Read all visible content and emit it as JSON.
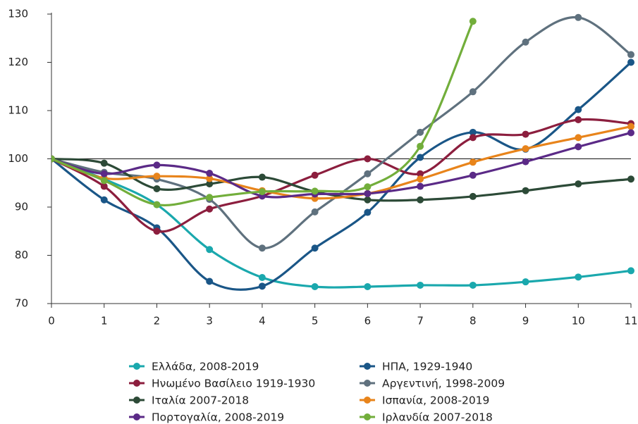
{
  "chart_data": {
    "type": "line",
    "x": [
      0,
      1,
      2,
      3,
      4,
      5,
      6,
      7,
      8,
      9,
      10,
      11
    ],
    "xlim": [
      0,
      11
    ],
    "xticks": [
      0,
      1,
      2,
      3,
      4,
      5,
      6,
      7,
      8,
      9,
      10,
      11
    ],
    "ylim": [
      70,
      130
    ],
    "yticks": [
      70,
      80,
      90,
      100,
      110,
      120,
      130
    ],
    "reference_line": 100,
    "smooth": true,
    "markers": true,
    "series": [
      {
        "name": "Ελλάδα, 2008-2019",
        "color": "#1aa8ad",
        "values": [
          100,
          95.8,
          90.5,
          81.2,
          75.4,
          73.5,
          73.5,
          73.8,
          73.8,
          74.5,
          75.5,
          76.8
        ]
      },
      {
        "name": "ΗΠΑ, 1929-1940",
        "color": "#1a5687",
        "values": [
          100,
          91.5,
          85.7,
          74.6,
          73.6,
          81.5,
          88.9,
          100.3,
          105.5,
          102,
          110.2,
          120
        ]
      },
      {
        "name": "Ηνωμένο Βασίλειο 1919-1930",
        "color": "#8c1e3e",
        "values": [
          100,
          94.3,
          85,
          89.6,
          92.3,
          96.6,
          100,
          96.9,
          104.4,
          105.1,
          108.1,
          107.3
        ]
      },
      {
        "name": "Αργεντινή, 1998-2009",
        "color": "#5f717e",
        "values": [
          100,
          97.2,
          95.8,
          91.6,
          81.5,
          89,
          96.9,
          105.5,
          113.9,
          124.2,
          129.3,
          121.6
        ]
      },
      {
        "name": "Ιταλία 2007-2018",
        "color": "#2c4a37",
        "values": [
          100,
          99.1,
          93.8,
          94.8,
          96.2,
          93.2,
          91.5,
          91.5,
          92.2,
          93.4,
          94.8,
          95.8
        ]
      },
      {
        "name": "Ισπανία, 2008-2019",
        "color": "#e8841b",
        "values": [
          100,
          96,
          96.4,
          95.9,
          93.4,
          91.8,
          92.8,
          95.8,
          99.3,
          102.1,
          104.4,
          106.7
        ]
      },
      {
        "name": "Πορτογαλία, 2008-2019",
        "color": "#5b2a87",
        "values": [
          100,
          96.9,
          98.7,
          97,
          92.3,
          92.7,
          92.8,
          94.3,
          96.6,
          99.4,
          102.5,
          105.4
        ]
      },
      {
        "name": "Ιρλανδία 2007-2018",
        "color": "#72ae3b",
        "values": [
          100,
          95.5,
          90.5,
          92,
          93.2,
          93.3,
          94.2,
          102.6,
          128.5,
          null,
          null,
          null
        ]
      }
    ]
  }
}
